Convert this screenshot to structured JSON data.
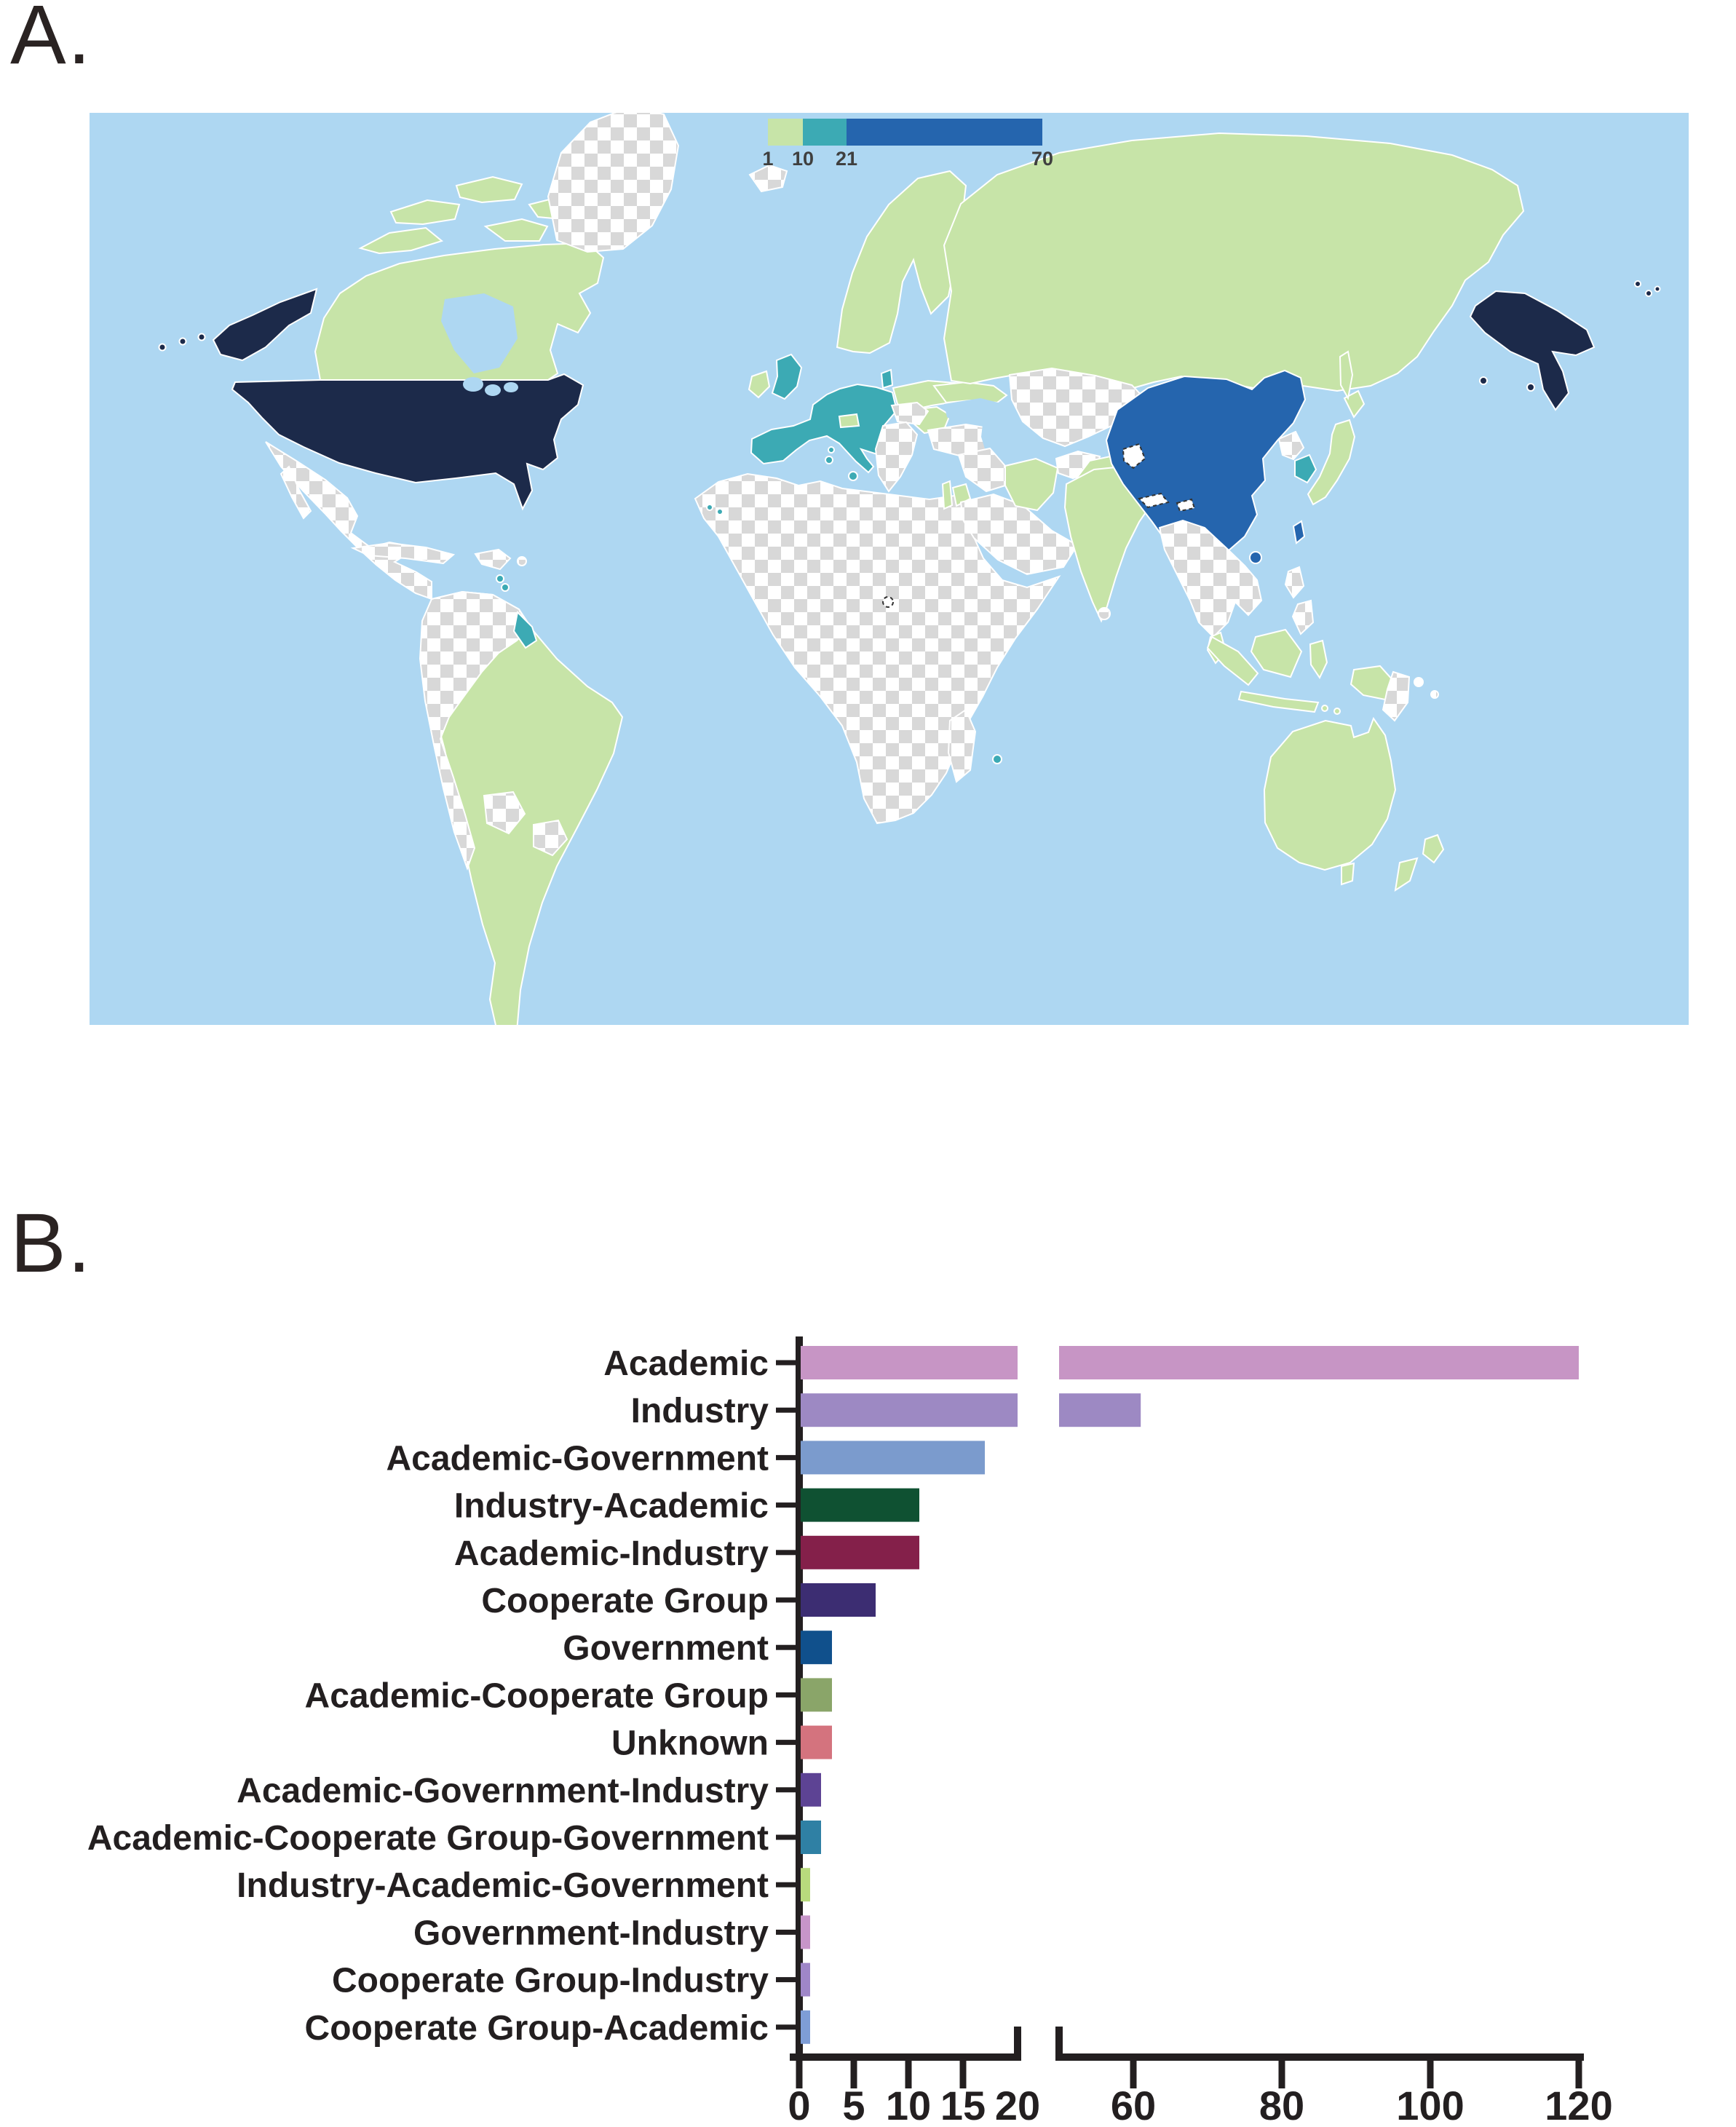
{
  "figure": {
    "panel_a_label": "A.",
    "panel_b_label": "B."
  },
  "map": {
    "legend": {
      "breaks": [
        "1",
        "10",
        "21",
        "70"
      ],
      "segment_bins": [
        "bin_1_10",
        "bin_10_21",
        "bin_21_70"
      ]
    },
    "palette": {
      "ocean": "#aed7f2",
      "bin_1_10": "#c7e4a8",
      "bin_10_21": "#3caab4",
      "bin_21_70": "#2565ae",
      "bin_max": "#1c2a4a",
      "no_data_light": "#ffffff",
      "no_data_dark": "#d8d8d8",
      "disputed_fill": "#ffffff",
      "disputed_stroke": "#333333"
    },
    "regions": {
      "alaska": "bin_max",
      "aleutian-islands": "bin_max",
      "united-states": "bin_max",
      "russia-far-east": "bin_max",
      "canada": "bin_1_10",
      "canada-arctic": "bin_1_10",
      "greenland": "no_data",
      "iceland": "no_data",
      "mexico-central-america": "no_data",
      "caribbean-islands": "no_data",
      "caribbean-fr": "bin_10_21",
      "south-america": "bin_1_10",
      "south-america-nw": "no_data",
      "paraguay": "no_data",
      "uruguay": "no_data",
      "french-guiana": "bin_10_21",
      "africa": "no_data",
      "madagascar": "no_data",
      "reunion": "bin_10_21",
      "canary-islands": "bin_10_21",
      "united-kingdom": "bin_10_21",
      "ireland": "bin_1_10",
      "scandinavia": "bin_1_10",
      "denmark": "bin_10_21",
      "western-europe": "bin_10_21",
      "sicily-sardinia": "bin_10_21",
      "switzerland": "bin_1_10",
      "eastern-europe": "bin_1_10",
      "central-europe": "no_data",
      "balkans": "no_data",
      "turkey": "no_data",
      "russia": "bin_1_10",
      "central-asia": "no_data",
      "iraq-syria": "no_data",
      "israel-jordan": "bin_1_10",
      "arabia": "no_data",
      "iran": "bin_1_10",
      "afghanistan": "no_data",
      "pakistan": "bin_1_10",
      "kashmir": "disputed",
      "india": "bin_1_10",
      "nepal-bhutan": "disputed",
      "central-africa-disputed": "disputed",
      "sri-lanka": "no_data",
      "mongolia": "no_data",
      "china": "bin_21_70",
      "taiwan": "bin_21_70",
      "hainan": "bin_21_70",
      "north-korea": "no_data",
      "south-korea": "bin_10_21",
      "japan": "bin_1_10",
      "sakhalin": "bin_1_10",
      "indochina": "no_data",
      "malay-peninsula": "bin_1_10",
      "philippines": "no_data",
      "indonesia": "bin_1_10",
      "papua-new-guinea": "no_data",
      "australia": "bin_1_10",
      "tasmania": "bin_1_10",
      "new-zealand": "bin_1_10"
    }
  },
  "chart_data": {
    "type": "bar",
    "orientation": "horizontal",
    "title": "",
    "xlabel": "",
    "ylabel": "",
    "categories": [
      "Academic",
      "Industry",
      "Academic-Government",
      "Industry-Academic",
      "Academic-Industry",
      "Cooperate Group",
      "Government",
      "Academic-Cooperate Group",
      "Unknown",
      "Academic-Government-Industry",
      "Academic-Cooperate Group-Government",
      "Industry-Academic-Government",
      "Government-Industry",
      "Cooperate Group-Industry",
      "Cooperate Group-Academic"
    ],
    "values": [
      120,
      61,
      17,
      11,
      11,
      7,
      3,
      3,
      3,
      2,
      2,
      1,
      1,
      1,
      1
    ],
    "bar_colors": [
      "#c795c5",
      "#9d89c3",
      "#7b9bcd",
      "#0f5132",
      "#84204a",
      "#3c2d72",
      "#10508c",
      "#8aa569",
      "#d4737e",
      "#5d4394",
      "#2f80a4",
      "#b8da7d",
      "#c795c9",
      "#9f86c8",
      "#7e9dd6"
    ],
    "axis_break": {
      "left_range": [
        0,
        20
      ],
      "left_ticks": [
        0,
        5,
        10,
        15,
        20
      ],
      "right_range": [
        50,
        125
      ],
      "right_ticks": [
        60,
        80,
        100,
        120
      ]
    },
    "grid": false,
    "legend_position": "none"
  }
}
